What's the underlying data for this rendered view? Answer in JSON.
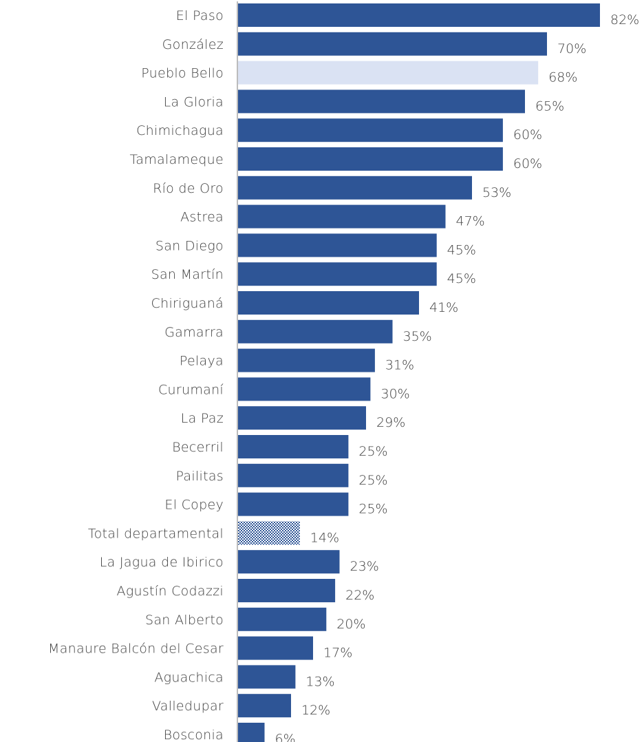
{
  "chart_data": {
    "type": "bar",
    "orientation": "horizontal",
    "title": "",
    "xlabel": "",
    "ylabel": "",
    "xlim": [
      0,
      85
    ],
    "grid": false,
    "legend": "none",
    "value_suffix": "%",
    "colors": {
      "default": "#2E5596",
      "highlight": "#DAE2F3",
      "total_pattern": "#2E5596",
      "axis": "#A6A6A6"
    },
    "categories": [
      "El Paso",
      "González",
      "Pueblo Bello",
      "La Gloria",
      "Chimichagua",
      "Tamalameque",
      "Río de Oro",
      "Astrea",
      "San Diego",
      "San Martín",
      "Chiriguaná",
      "Gamarra",
      "Pelaya",
      "Curumaní",
      "La Paz",
      "Becerril",
      "Pailitas",
      "El Copey",
      "Total departamental",
      "La Jagua de Ibirico",
      "Agustín Codazzi",
      "San Alberto",
      "Manaure Balcón del Cesar",
      "Aguachica",
      "Valledupar",
      "Bosconia"
    ],
    "values": [
      82,
      70,
      68,
      65,
      60,
      60,
      53,
      47,
      45,
      45,
      41,
      35,
      31,
      30,
      29,
      25,
      25,
      25,
      14,
      23,
      22,
      20,
      17,
      13,
      12,
      6
    ],
    "bar_styles": [
      "solid",
      "solid",
      "highlight",
      "solid",
      "solid",
      "solid",
      "solid",
      "solid",
      "solid",
      "solid",
      "solid",
      "solid",
      "solid",
      "solid",
      "solid",
      "solid",
      "solid",
      "solid",
      "pattern",
      "solid",
      "solid",
      "solid",
      "solid",
      "solid",
      "solid",
      "solid"
    ]
  }
}
